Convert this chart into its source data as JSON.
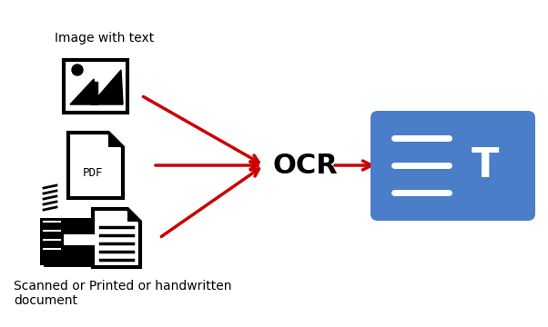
{
  "bg_color": "#ffffff",
  "arrow_color": "#cc0000",
  "ocr_text": "OCR",
  "ocr_fontsize": 22,
  "label_image": "Image with text",
  "label_scan": "Scanned or Printed or handwritten\ndocument",
  "output_box_color": "#4a7ec8",
  "output_icon_lines_color": "#ffffff",
  "text_color": "#000000",
  "figsize": [
    6.02,
    3.6
  ],
  "dpi": 100
}
